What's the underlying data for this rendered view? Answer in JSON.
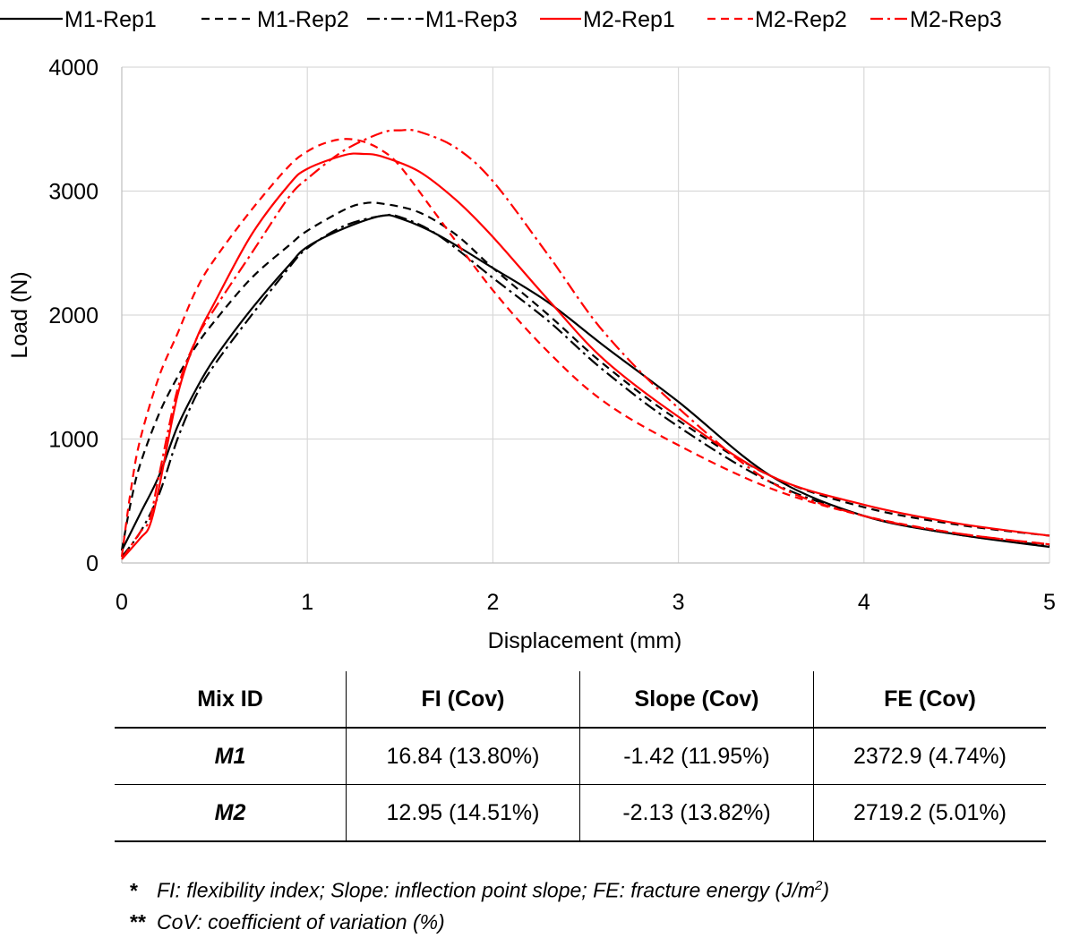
{
  "chart_data": {
    "type": "line",
    "title": "",
    "xlabel": "Displacement (mm)",
    "ylabel": "Load (N)",
    "xlim": [
      0,
      5
    ],
    "ylim": [
      0,
      4000
    ],
    "x_ticks": [
      0,
      1,
      2,
      3,
      4,
      5
    ],
    "y_ticks": [
      0,
      1000,
      2000,
      3000,
      4000
    ],
    "grid": "both",
    "legend_position": "top",
    "series": [
      {
        "name": "M1-Rep1",
        "color": "#000000",
        "dash": "solid",
        "x": [
          0,
          0.1,
          0.2,
          0.3,
          0.4,
          0.5,
          0.7,
          0.9,
          1.0,
          1.2,
          1.4,
          1.5,
          1.7,
          2.0,
          2.3,
          2.6,
          3.0,
          3.5,
          4.0,
          4.5,
          5.0
        ],
        "y": [
          100,
          400,
          700,
          1100,
          1400,
          1650,
          2050,
          2400,
          2550,
          2700,
          2800,
          2780,
          2650,
          2380,
          2100,
          1750,
          1300,
          700,
          380,
          230,
          130
        ]
      },
      {
        "name": "M1-Rep2",
        "color": "#000000",
        "dash": "dashed",
        "x": [
          0,
          0.05,
          0.1,
          0.2,
          0.3,
          0.4,
          0.5,
          0.7,
          0.9,
          1.0,
          1.2,
          1.3,
          1.4,
          1.6,
          1.8,
          2.0,
          2.3,
          2.6,
          3.0,
          3.5,
          4.0,
          4.5,
          5.0
        ],
        "y": [
          100,
          500,
          800,
          1200,
          1500,
          1750,
          1950,
          2300,
          2560,
          2680,
          2850,
          2900,
          2900,
          2830,
          2650,
          2380,
          2000,
          1600,
          1150,
          700,
          450,
          310,
          220
        ]
      },
      {
        "name": "M1-Rep3",
        "color": "#000000",
        "dash": "dashdot",
        "x": [
          0,
          0.1,
          0.2,
          0.3,
          0.4,
          0.5,
          0.7,
          0.9,
          1.0,
          1.2,
          1.4,
          1.5,
          1.7,
          2.0,
          2.3,
          2.6,
          3.0,
          3.5,
          4.0,
          4.5,
          5.0
        ],
        "y": [
          50,
          250,
          550,
          1000,
          1350,
          1600,
          2000,
          2380,
          2540,
          2720,
          2800,
          2790,
          2650,
          2300,
          1950,
          1550,
          1100,
          650,
          380,
          230,
          140
        ]
      },
      {
        "name": "M2-Rep1",
        "color": "#ff0000",
        "dash": "solid",
        "x": [
          0,
          0.1,
          0.15,
          0.2,
          0.3,
          0.4,
          0.5,
          0.7,
          0.9,
          1.0,
          1.2,
          1.3,
          1.4,
          1.6,
          1.8,
          2.0,
          2.3,
          2.6,
          3.0,
          3.5,
          4.0,
          4.5,
          5.0
        ],
        "y": [
          30,
          200,
          300,
          600,
          1350,
          1800,
          2100,
          2650,
          3050,
          3180,
          3290,
          3300,
          3280,
          3160,
          2930,
          2630,
          2120,
          1640,
          1180,
          700,
          470,
          320,
          220
        ]
      },
      {
        "name": "M2-Rep2",
        "color": "#ff0000",
        "dash": "dashed",
        "x": [
          0,
          0.05,
          0.1,
          0.2,
          0.3,
          0.4,
          0.5,
          0.7,
          0.9,
          1.0,
          1.1,
          1.2,
          1.3,
          1.4,
          1.5,
          1.7,
          2.0,
          2.3,
          2.6,
          3.0,
          3.5,
          4.0,
          4.5,
          5.0
        ],
        "y": [
          50,
          600,
          1000,
          1500,
          1850,
          2200,
          2450,
          2850,
          3200,
          3320,
          3390,
          3420,
          3400,
          3330,
          3200,
          2800,
          2200,
          1700,
          1300,
          950,
          600,
          380,
          240,
          150
        ]
      },
      {
        "name": "M2-Rep3",
        "color": "#ff0000",
        "dash": "dashdot",
        "x": [
          0,
          0.1,
          0.15,
          0.2,
          0.3,
          0.4,
          0.5,
          0.7,
          0.9,
          1.0,
          1.2,
          1.4,
          1.5,
          1.6,
          1.8,
          2.0,
          2.3,
          2.6,
          3.0,
          3.5,
          4.0,
          4.5,
          5.0
        ],
        "y": [
          30,
          250,
          350,
          700,
          1400,
          1800,
          2050,
          2500,
          2950,
          3100,
          3330,
          3470,
          3490,
          3480,
          3350,
          3080,
          2480,
          1860,
          1250,
          650,
          380,
          240,
          150
        ]
      }
    ]
  },
  "table": {
    "headers": [
      "Mix ID",
      "FI (Cov)",
      "Slope (Cov)",
      "FE (Cov)"
    ],
    "rows": [
      [
        "M1",
        "16.84 (13.80%)",
        "-1.42 (11.95%)",
        "2372.9 (4.74%)"
      ],
      [
        "M2",
        "12.95 (14.51%)",
        "-2.13 (13.82%)",
        "2719.2 (5.01%)"
      ]
    ]
  },
  "notes": {
    "note1_marker": "*",
    "note1_text": "FI: flexibility index; Slope: inflection point slope; FE: fracture energy (J/m",
    "note1_sup": "2",
    "note1_end": ")",
    "note2_marker": "**",
    "note2_text": "CoV: coefficient of variation (%)"
  }
}
